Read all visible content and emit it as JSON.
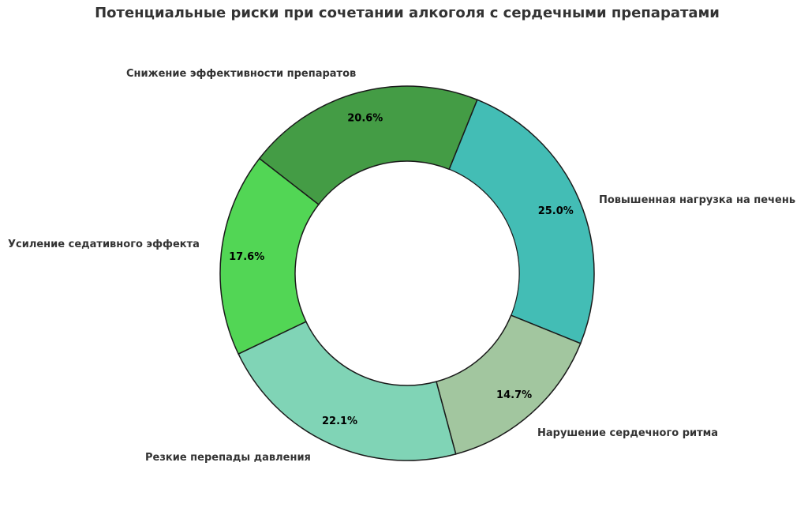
{
  "chart_data": {
    "type": "pie",
    "variant": "donut",
    "title": "Потенциальные риски при сочетании алкоголя с сердечными препаратами",
    "categories": [
      "Повышенная нагрузка на печень",
      "Нарушение сердечного ритма",
      "Резкие перепады давления",
      "Усиление седативного эффекта",
      "Снижение эффективности препаратов"
    ],
    "values": [
      25.0,
      14.7,
      22.1,
      17.6,
      20.6
    ],
    "value_labels": [
      "25.0%",
      "14.7%",
      "22.1%",
      "17.6%",
      "20.6%"
    ],
    "colors": [
      "#43bdb5",
      "#a2c69f",
      "#80d4b6",
      "#52d655",
      "#449c45"
    ],
    "start_angle_deg_from_top_clockwise": 22,
    "legend": "none (labels placed outside slices)",
    "grid": false
  },
  "style": {
    "edge_color": "#1a1a1a",
    "title_color": "#333333",
    "label_color": "#333333",
    "pct_color": "#000000"
  }
}
